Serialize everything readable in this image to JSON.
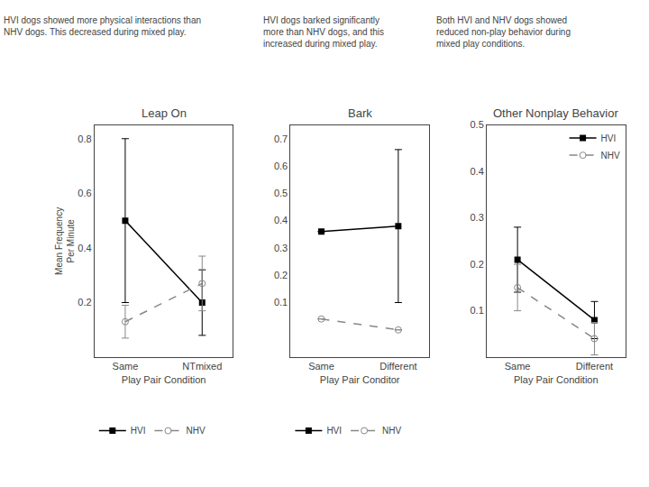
{
  "chart_data": [
    {
      "type": "line",
      "title": "Leap On",
      "x_label": "Play Pair Condition",
      "y_label": "Mean Frequency\nPer Minute",
      "categories": [
        "Same",
        "NTmixed"
      ],
      "series": [
        {
          "name": "HVI",
          "color": "#000000",
          "marker": "square",
          "line_style": "solid",
          "values": [
            0.5,
            0.2
          ],
          "errors": [
            0.3,
            0.12
          ]
        },
        {
          "name": "NHV",
          "color": "#888888",
          "marker": "circle-open",
          "line_style": "dash",
          "values": [
            0.13,
            0.27
          ],
          "errors": [
            0.06,
            0.1
          ]
        }
      ],
      "ylim": [
        0.0,
        0.85
      ],
      "yticks": [
        0.2,
        0.4,
        0.6,
        0.8
      ],
      "grid": false,
      "legend": "bottom",
      "annotations": [
        "HVI dogs showed more physical interactions than",
        "NHV dogs. This decreased during mixed play."
      ]
    },
    {
      "type": "line",
      "title": "Bark",
      "x_label": "Play Pair Conditor",
      "categories": [
        "Same",
        "Different"
      ],
      "series": [
        {
          "name": "HVI",
          "color": "#000000",
          "marker": "square",
          "line_style": "solid",
          "values": [
            0.36,
            0.38
          ],
          "errors": [
            0.0,
            0.28
          ]
        },
        {
          "name": "NHV",
          "color": "#888888",
          "marker": "circle-open",
          "line_style": "dash",
          "values": [
            0.04,
            0.0
          ],
          "errors": [
            0.0,
            0.0
          ]
        }
      ],
      "ylim": [
        -0.1,
        0.75
      ],
      "yticks": [
        0.1,
        0.2,
        0.3,
        0.4,
        0.5,
        0.6,
        0.7
      ],
      "grid": false,
      "legend": "bottom",
      "annotations": [
        "HVI dogs barked significantly",
        "more than NHV dogs, and this",
        "increased during mixed play."
      ]
    },
    {
      "type": "line",
      "title": "Other Nonplay Behavior",
      "x_label": "Play Pair Condition",
      "categories": [
        "Same",
        "Different"
      ],
      "series": [
        {
          "name": "HVI",
          "color": "#000000",
          "marker": "square",
          "line_style": "solid",
          "values": [
            0.21,
            0.08
          ],
          "errors": [
            0.07,
            0.04
          ]
        },
        {
          "name": "NHV",
          "color": "#888888",
          "marker": "circle-open",
          "line_style": "dash",
          "values": [
            0.15,
            0.04
          ],
          "errors": [
            0.05,
            0.035
          ]
        }
      ],
      "ylim": [
        0.0,
        0.5
      ],
      "yticks": [
        0.1,
        0.2,
        0.3,
        0.4,
        0.5
      ],
      "grid": false,
      "legend": "upper right",
      "annotations": [
        "Both HVI and NHV dogs showed",
        "reduced non-play behavior during",
        "mixed play conditions."
      ]
    }
  ]
}
